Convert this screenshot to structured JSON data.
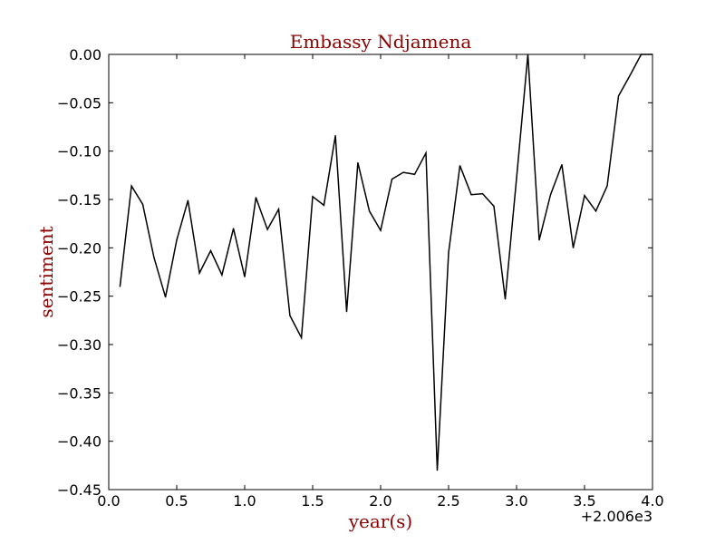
{
  "chart_data": {
    "type": "line",
    "title": "Embassy Ndjamena",
    "xlabel": "year(s)",
    "ylabel": "sentiment",
    "x_offset_label": "+2.006e3",
    "xlim": [
      0.0,
      4.0
    ],
    "ylim": [
      -0.45,
      0.0
    ],
    "xticks": [
      0.0,
      0.5,
      1.0,
      1.5,
      2.0,
      2.5,
      3.0,
      3.5,
      4.0
    ],
    "xtick_labels": [
      "0.0",
      "0.5",
      "1.0",
      "1.5",
      "2.0",
      "2.5",
      "3.0",
      "3.5",
      "4.0"
    ],
    "yticks": [
      0.0,
      -0.05,
      -0.1,
      -0.15,
      -0.2,
      -0.25,
      -0.3,
      -0.35,
      -0.4,
      -0.45
    ],
    "ytick_labels": [
      "0.00",
      "−0.05",
      "−0.10",
      "−0.15",
      "−0.20",
      "−0.25",
      "−0.30",
      "−0.35",
      "−0.40",
      "−0.45"
    ],
    "grid": false,
    "series": [
      {
        "color": "#000000",
        "x": [
          0.083,
          0.167,
          0.25,
          0.333,
          0.417,
          0.5,
          0.583,
          0.667,
          0.75,
          0.833,
          0.917,
          1.0,
          1.083,
          1.167,
          1.25,
          1.333,
          1.417,
          1.5,
          1.583,
          1.667,
          1.75,
          1.833,
          1.917,
          2.0,
          2.083,
          2.167,
          2.25,
          2.333,
          2.417,
          2.5,
          2.583,
          2.667,
          2.75,
          2.833,
          2.917,
          3.0,
          3.083,
          3.167,
          3.25,
          3.333,
          3.417,
          3.5,
          3.583,
          3.667,
          3.75,
          3.833,
          3.917,
          4.0
        ],
        "y": [
          -0.24,
          -0.136,
          -0.155,
          -0.21,
          -0.251,
          -0.192,
          -0.151,
          -0.226,
          -0.203,
          -0.228,
          -0.18,
          -0.23,
          -0.148,
          -0.181,
          -0.16,
          -0.27,
          -0.293,
          -0.147,
          -0.156,
          -0.084,
          -0.266,
          -0.112,
          -0.162,
          -0.182,
          -0.129,
          -0.122,
          -0.124,
          -0.102,
          -0.43,
          -0.205,
          -0.115,
          -0.145,
          -0.144,
          -0.157,
          -0.253,
          -0.128,
          0.0,
          -0.192,
          -0.145,
          -0.114,
          -0.2,
          -0.146,
          -0.162,
          -0.136,
          -0.043,
          -0.022,
          0.0,
          0.0
        ]
      }
    ]
  }
}
